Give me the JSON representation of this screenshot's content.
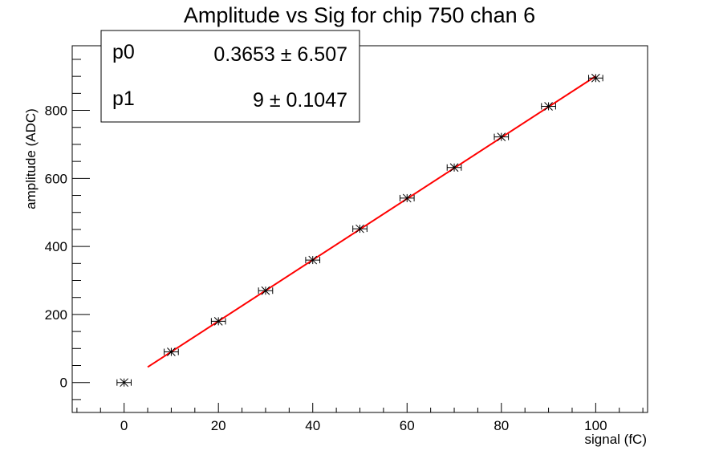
{
  "chart_data": {
    "type": "scatter",
    "title": "Amplitude vs Sig for chip 750 chan 6",
    "xlabel": "signal (fC)",
    "ylabel": "amplitude (ADC)",
    "xlim": [
      -11,
      111
    ],
    "ylim": [
      -88,
      990
    ],
    "x_ticks": [
      0,
      20,
      40,
      60,
      80,
      100
    ],
    "y_ticks": [
      0,
      200,
      400,
      600,
      800
    ],
    "x_tick_labels": [
      "0",
      "20",
      "40",
      "60",
      "80",
      "100"
    ],
    "y_tick_labels": [
      "0",
      "200",
      "400",
      "600",
      "800"
    ],
    "grid": false,
    "series": [
      {
        "x": [
          0,
          10,
          20,
          30,
          40,
          50,
          60,
          70,
          80,
          90,
          100
        ],
        "y": [
          0,
          90,
          180,
          270,
          360,
          452,
          542,
          632,
          722,
          812,
          895
        ],
        "x_err": 1.5,
        "color": "#000000",
        "marker": "star"
      }
    ],
    "fit": {
      "function": "p0 + p1*x",
      "x_range": [
        5,
        100
      ],
      "p0": 0.3653,
      "p1": 9,
      "color": "#ff0000"
    },
    "stats_box": {
      "rows": [
        {
          "name": "p0",
          "value": "0.3653 ± 6.507"
        },
        {
          "name": "p1",
          "value": "9 ± 0.1047"
        }
      ],
      "position": "top-left"
    }
  }
}
